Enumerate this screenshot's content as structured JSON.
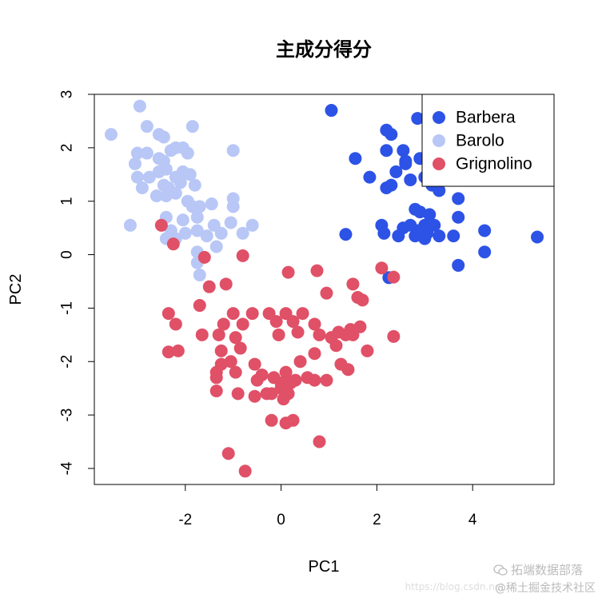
{
  "chart_data": {
    "type": "scatter",
    "title": "主成分得分",
    "xlabel": "PC1",
    "ylabel": "PC2",
    "xlim": [
      -3.9,
      5.7
    ],
    "ylim": [
      -4.3,
      3.0
    ],
    "x_ticks": [
      -2,
      0,
      2,
      4
    ],
    "x_tick_labels": [
      "-2",
      "0",
      "2",
      "4"
    ],
    "y_ticks": [
      -4,
      -3,
      -2,
      -1,
      0,
      1,
      2,
      3
    ],
    "y_tick_labels": [
      "-4",
      "-3",
      "-2",
      "-1",
      "0",
      "1",
      "2",
      "3"
    ],
    "grid": false,
    "legend_position": "top-right",
    "series": [
      {
        "name": "Barbera",
        "color": "#2d52e6",
        "points": [
          [
            1.05,
            2.7
          ],
          [
            2.2,
            2.33
          ],
          [
            2.3,
            2.25
          ],
          [
            2.85,
            2.55
          ],
          [
            3.1,
            2.35
          ],
          [
            3.3,
            2.6
          ],
          [
            3.3,
            1.95
          ],
          [
            3.2,
            1.55
          ],
          [
            2.9,
            1.8
          ],
          [
            2.55,
            1.95
          ],
          [
            2.6,
            1.75
          ],
          [
            2.6,
            1.7
          ],
          [
            2.2,
            1.95
          ],
          [
            1.55,
            1.8
          ],
          [
            2.4,
            1.55
          ],
          [
            1.85,
            1.45
          ],
          [
            2.7,
            1.4
          ],
          [
            3.0,
            1.45
          ],
          [
            2.3,
            1.3
          ],
          [
            2.2,
            1.25
          ],
          [
            3.15,
            1.3
          ],
          [
            3.3,
            1.2
          ],
          [
            3.7,
            1.05
          ],
          [
            2.8,
            0.85
          ],
          [
            2.9,
            0.8
          ],
          [
            3.1,
            0.75
          ],
          [
            3.7,
            0.7
          ],
          [
            2.1,
            0.55
          ],
          [
            2.55,
            0.5
          ],
          [
            2.7,
            0.55
          ],
          [
            3.0,
            0.55
          ],
          [
            3.2,
            0.55
          ],
          [
            2.85,
            0.45
          ],
          [
            3.05,
            0.4
          ],
          [
            2.15,
            0.4
          ],
          [
            2.45,
            0.35
          ],
          [
            2.8,
            0.35
          ],
          [
            3.0,
            0.3
          ],
          [
            3.3,
            0.35
          ],
          [
            3.6,
            0.35
          ],
          [
            4.25,
            0.45
          ],
          [
            5.35,
            0.33
          ],
          [
            1.35,
            0.38
          ],
          [
            3.7,
            -0.2
          ],
          [
            4.25,
            0.05
          ],
          [
            2.25,
            -0.43
          ]
        ]
      },
      {
        "name": "Barolo",
        "color": "#b8c7f6",
        "points": [
          [
            -3.55,
            2.25
          ],
          [
            -2.95,
            2.78
          ],
          [
            -2.8,
            2.4
          ],
          [
            -2.55,
            2.25
          ],
          [
            -2.45,
            2.2
          ],
          [
            -1.85,
            2.4
          ],
          [
            -3.0,
            1.9
          ],
          [
            -2.8,
            1.9
          ],
          [
            -2.55,
            1.8
          ],
          [
            -2.3,
            1.95
          ],
          [
            -2.2,
            2.0
          ],
          [
            -2.05,
            2.0
          ],
          [
            -1.95,
            1.9
          ],
          [
            -2.45,
            1.75
          ],
          [
            -1.0,
            1.95
          ],
          [
            -3.05,
            1.7
          ],
          [
            -2.55,
            1.55
          ],
          [
            -2.4,
            1.6
          ],
          [
            -2.2,
            1.45
          ],
          [
            -2.05,
            1.55
          ],
          [
            -1.9,
            1.5
          ],
          [
            -3.0,
            1.45
          ],
          [
            -2.75,
            1.45
          ],
          [
            -2.1,
            1.35
          ],
          [
            -1.8,
            1.3
          ],
          [
            -2.45,
            1.3
          ],
          [
            -2.35,
            1.25
          ],
          [
            -2.2,
            1.15
          ],
          [
            -2.9,
            1.25
          ],
          [
            -2.6,
            1.1
          ],
          [
            -2.4,
            1.1
          ],
          [
            -1.95,
            1.0
          ],
          [
            -1.85,
            0.9
          ],
          [
            -1.7,
            0.9
          ],
          [
            -1.45,
            0.95
          ],
          [
            -1.0,
            1.05
          ],
          [
            -1.0,
            0.9
          ],
          [
            -2.4,
            0.7
          ],
          [
            -2.05,
            0.65
          ],
          [
            -1.75,
            0.7
          ],
          [
            -1.4,
            0.55
          ],
          [
            -1.05,
            0.6
          ],
          [
            -0.6,
            0.55
          ],
          [
            -2.3,
            0.45
          ],
          [
            -2.0,
            0.4
          ],
          [
            -1.75,
            0.45
          ],
          [
            -1.55,
            0.35
          ],
          [
            -1.25,
            0.4
          ],
          [
            -0.8,
            0.4
          ],
          [
            -3.15,
            0.55
          ],
          [
            -2.4,
            0.3
          ],
          [
            -2.2,
            0.3
          ],
          [
            -1.75,
            0.05
          ],
          [
            -1.35,
            0.15
          ],
          [
            -1.75,
            -0.15
          ],
          [
            -1.7,
            -0.38
          ]
        ]
      },
      {
        "name": "Grignolino",
        "color": "#e05067",
        "points": [
          [
            -2.5,
            0.55
          ],
          [
            -2.25,
            0.2
          ],
          [
            -0.8,
            -0.02
          ],
          [
            0.15,
            -0.33
          ],
          [
            -1.5,
            -0.6
          ],
          [
            -1.15,
            -0.55
          ],
          [
            0.75,
            -0.3
          ],
          [
            2.1,
            -0.25
          ],
          [
            1.5,
            -0.55
          ],
          [
            2.35,
            -0.42
          ],
          [
            0.95,
            -0.72
          ],
          [
            1.6,
            -0.8
          ],
          [
            1.7,
            -0.85
          ],
          [
            -1.7,
            -0.95
          ],
          [
            -2.35,
            -1.1
          ],
          [
            -2.2,
            -1.3
          ],
          [
            -1.0,
            -1.1
          ],
          [
            -0.6,
            -1.1
          ],
          [
            -0.25,
            -1.1
          ],
          [
            0.1,
            -1.1
          ],
          [
            0.45,
            -1.1
          ],
          [
            -1.2,
            -1.3
          ],
          [
            -0.95,
            -1.55
          ],
          [
            -0.8,
            -1.3
          ],
          [
            -0.1,
            -1.25
          ],
          [
            0.25,
            -1.25
          ],
          [
            0.7,
            -1.3
          ],
          [
            -1.65,
            -1.5
          ],
          [
            -1.3,
            -1.5
          ],
          [
            -0.05,
            -1.5
          ],
          [
            0.35,
            -1.45
          ],
          [
            0.8,
            -1.5
          ],
          [
            1.05,
            -1.55
          ],
          [
            1.2,
            -1.45
          ],
          [
            1.35,
            -1.5
          ],
          [
            1.5,
            -1.5
          ],
          [
            1.45,
            -1.4
          ],
          [
            1.65,
            -1.35
          ],
          [
            1.15,
            -1.7
          ],
          [
            1.8,
            -1.8
          ],
          [
            -2.35,
            -1.82
          ],
          [
            -2.15,
            -1.8
          ],
          [
            -1.25,
            -1.8
          ],
          [
            -0.85,
            -1.75
          ],
          [
            0.7,
            -1.85
          ],
          [
            0.4,
            -2.0
          ],
          [
            -1.25,
            -2.05
          ],
          [
            -1.05,
            -2.0
          ],
          [
            -0.55,
            -2.05
          ],
          [
            -1.35,
            -2.2
          ],
          [
            -0.95,
            -2.2
          ],
          [
            -0.4,
            -2.25
          ],
          [
            -0.15,
            -2.3
          ],
          [
            0.1,
            -2.2
          ],
          [
            0.3,
            -2.35
          ],
          [
            0.55,
            -2.3
          ],
          [
            1.25,
            -2.05
          ],
          [
            1.4,
            -2.15
          ],
          [
            2.35,
            -1.53
          ],
          [
            -1.35,
            -2.3
          ],
          [
            -0.5,
            -2.35
          ],
          [
            0.0,
            -2.4
          ],
          [
            0.2,
            -2.4
          ],
          [
            0.7,
            -2.35
          ],
          [
            0.95,
            -2.35
          ],
          [
            -0.55,
            -2.65
          ],
          [
            -0.3,
            -2.6
          ],
          [
            0.0,
            -2.5
          ],
          [
            0.15,
            -2.6
          ],
          [
            -1.35,
            -2.55
          ],
          [
            -0.9,
            -2.6
          ],
          [
            -0.2,
            -2.6
          ],
          [
            0.05,
            -2.7
          ],
          [
            -0.2,
            -3.1
          ],
          [
            0.1,
            -3.15
          ],
          [
            0.25,
            -3.1
          ],
          [
            0.8,
            -3.5
          ],
          [
            -1.1,
            -3.72
          ],
          [
            -0.75,
            -4.05
          ],
          [
            -1.6,
            -0.05
          ]
        ]
      }
    ]
  },
  "watermark": {
    "url": "https://blog.csdn.net",
    "brand": "拓端数据部落",
    "site": "@稀土掘金技术社区"
  }
}
